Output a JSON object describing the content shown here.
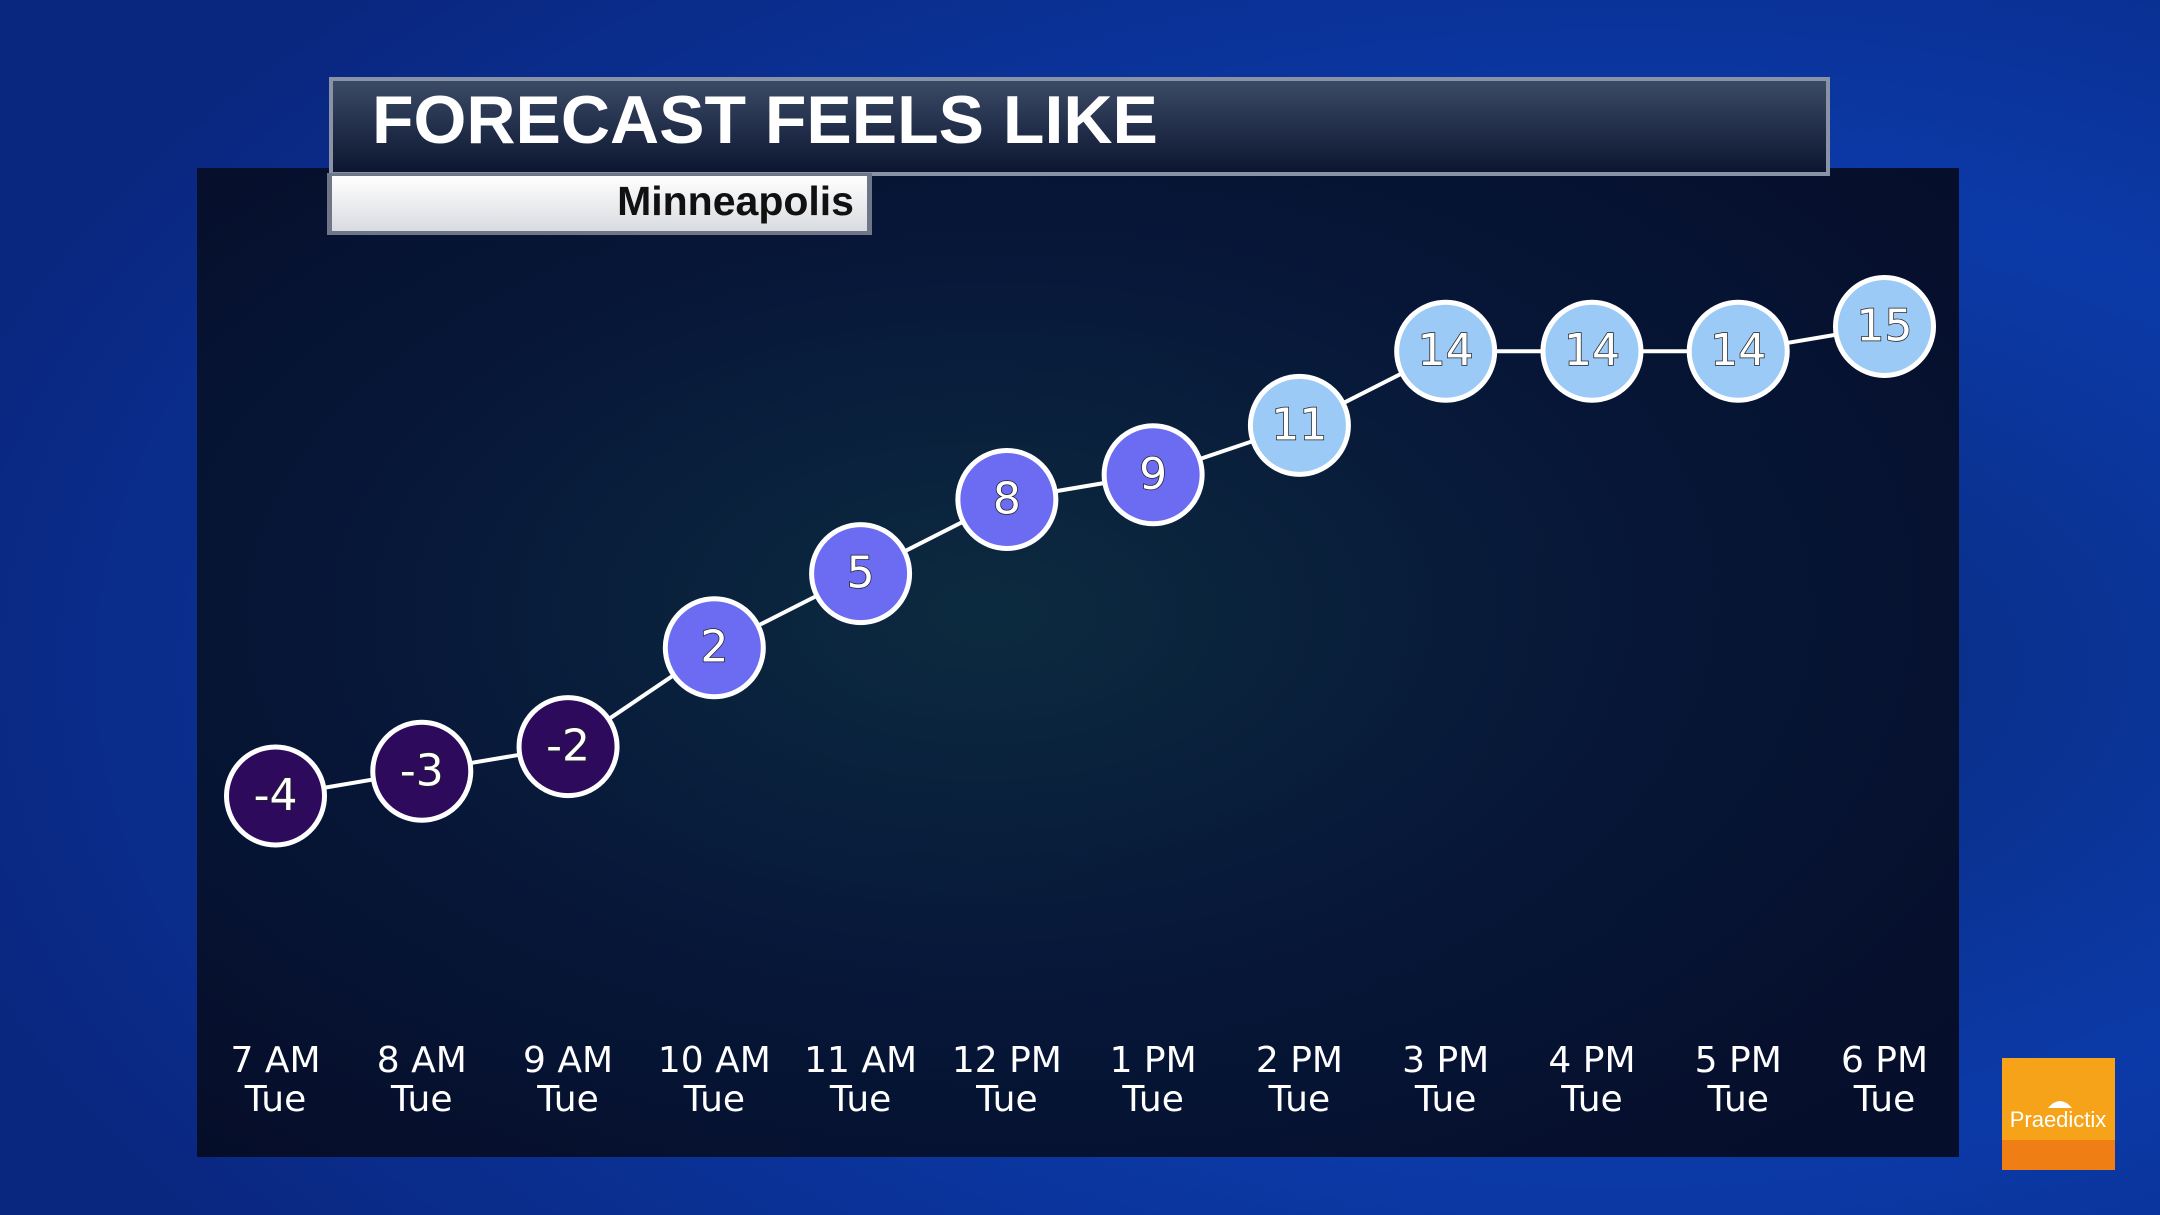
{
  "chart_data": {
    "type": "line",
    "title": "FORECAST FEELS LIKE",
    "subtitle": "Minneapolis",
    "categories": [
      "7 AM",
      "8 AM",
      "9 AM",
      "10 AM",
      "11 AM",
      "12 PM",
      "1 PM",
      "2 PM",
      "3 PM",
      "4 PM",
      "5 PM",
      "6 PM"
    ],
    "days": [
      "Tue",
      "Tue",
      "Tue",
      "Tue",
      "Tue",
      "Tue",
      "Tue",
      "Tue",
      "Tue",
      "Tue",
      "Tue",
      "Tue"
    ],
    "values": [
      -4,
      -3,
      -2,
      2,
      5,
      8,
      9,
      11,
      14,
      14,
      14,
      15
    ],
    "point_colors": [
      "#2e0a5c",
      "#2e0a5c",
      "#2e0a5c",
      "#6b6cf2",
      "#6b6cf2",
      "#6b6cf2",
      "#6b6cf2",
      "#9ccaf7",
      "#9ccaf7",
      "#9ccaf7",
      "#9ccaf7",
      "#9ccaf7"
    ],
    "line_color": "#ffffff",
    "logo": "Praedictix"
  }
}
